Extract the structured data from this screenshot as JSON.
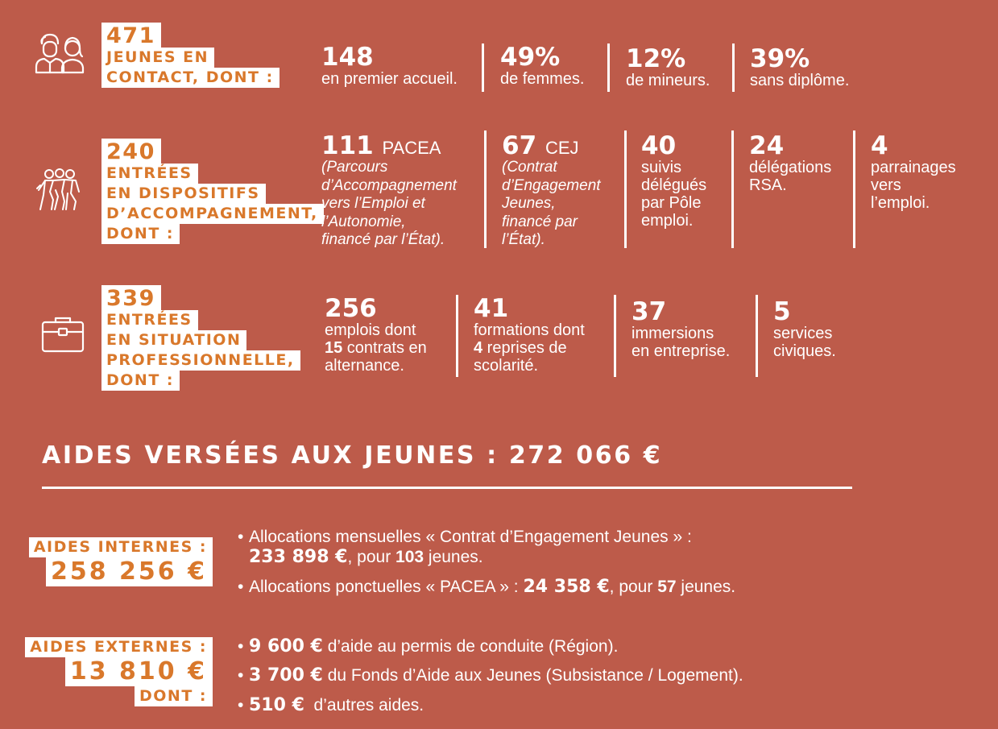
{
  "block1": {
    "count": "471",
    "label_lines": [
      "JEUNES EN",
      "CONTACT, DONT :"
    ],
    "stats": [
      {
        "value": "148",
        "text": "en premier accueil."
      },
      {
        "value": "49%",
        "text": "de femmes."
      },
      {
        "value": "12%",
        "text": "de mineurs."
      },
      {
        "value": "39%",
        "text": "sans diplôme."
      }
    ]
  },
  "block2": {
    "count": "240",
    "label_lines": [
      "ENTRÉES",
      "EN DISPOSITIFS",
      "D’ACCOMPAGNEMENT,",
      "DONT :"
    ],
    "stats": [
      {
        "value": "111",
        "unit": "PACEA",
        "lines": [
          "(Parcours",
          "d’Accompagnement",
          "vers l’Emploi et",
          "l’Autonomie,",
          "financé par l’État)."
        ]
      },
      {
        "value": "67",
        "unit": "CEJ",
        "lines": [
          "(Contrat",
          "d’Engagement",
          "Jeunes,",
          "financé par",
          "l’État)."
        ]
      },
      {
        "value": "40",
        "lines": [
          "suivis",
          "délégués",
          "par Pôle",
          "emploi."
        ]
      },
      {
        "value": "24",
        "lines": [
          "délégations",
          "RSA."
        ]
      },
      {
        "value": "4",
        "lines": [
          "parrainages",
          "vers",
          "l’emploi."
        ]
      }
    ]
  },
  "block3": {
    "count": "339",
    "label_lines": [
      "ENTRÉES",
      "EN SITUATION",
      "PROFESSIONNELLE,",
      "DONT :"
    ],
    "stats": [
      {
        "value": "256",
        "l1": "emplois dont",
        "l2_bold": "15",
        "l2": " contrats en",
        "l3": "alternance."
      },
      {
        "value": "41",
        "l1": "formations dont",
        "l2_bold": "4",
        "l2": " reprises de",
        "l3": "scolarité."
      },
      {
        "value": "37",
        "lines": [
          "immersions",
          "en entreprise."
        ]
      },
      {
        "value": "5",
        "lines": [
          "services",
          "civiques."
        ]
      }
    ]
  },
  "aides": {
    "title": "AIDES VERSÉES AUX JEUNES : 272 066 €",
    "internes": {
      "label": "AIDES INTERNES :",
      "amount": "258 256 €",
      "items": [
        {
          "text1": "Allocations mensuelles « Contrat d’Engagement Jeunes » :",
          "amount": "233 898 €",
          "text2": ", pour ",
          "count": "103",
          "text3": " jeunes."
        },
        {
          "text1": "Allocations ponctuelles « PACEA » : ",
          "amount": "24 358 €",
          "text2": ", pour ",
          "count": "57",
          "text3": " jeunes."
        }
      ]
    },
    "externes": {
      "label": "AIDES EXTERNES :",
      "amount": "13 810 €",
      "dont": "DONT :",
      "items": [
        {
          "amount": "9 600 €",
          "text": " d’aide au permis de conduite (Région)."
        },
        {
          "amount": "3 700 €",
          "text": " du Fonds d’Aide aux Jeunes (Subsistance / Logement)."
        },
        {
          "amount": "510 €",
          "text": "  d’autres aides."
        }
      ]
    }
  },
  "icons": [
    "people-icon",
    "crowd-icon",
    "briefcase-icon"
  ],
  "colors": {
    "background": "#bd5b4a",
    "accent": "#d9782b",
    "text": "#ffffff"
  }
}
